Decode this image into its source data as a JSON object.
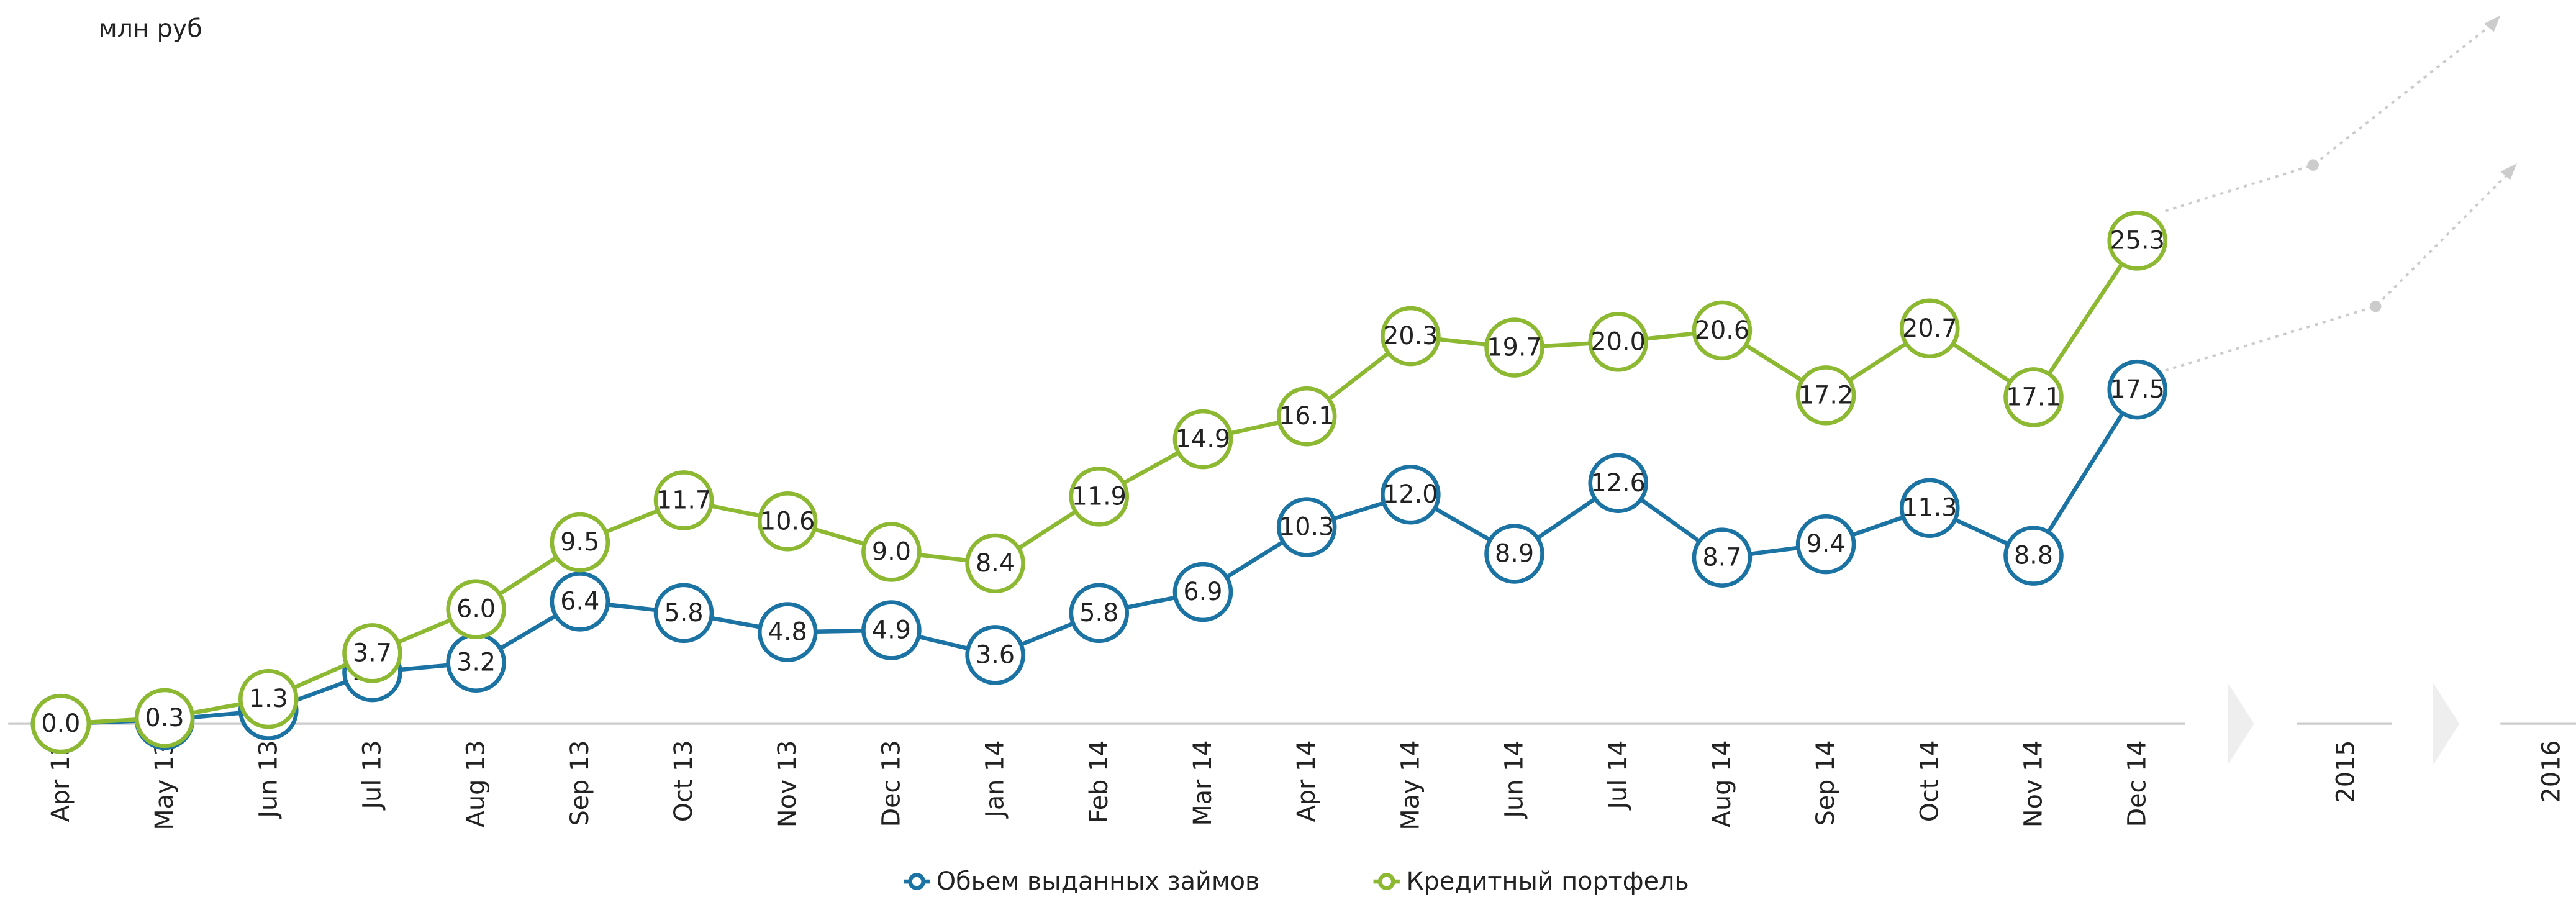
{
  "chart_data": {
    "type": "line",
    "unit_label": "млн руб",
    "categories": [
      "Apr 13",
      "May 13",
      "Jun 13",
      "Jul 13",
      "Aug 13",
      "Sep 13",
      "Oct 13",
      "Nov 13",
      "Dec 13",
      "Jan 14",
      "Feb 14",
      "Mar 14",
      "Apr 14",
      "May 14",
      "Jun 14",
      "Jul 14",
      "Aug 14",
      "Sep 14",
      "Oct 14",
      "Nov 14",
      "Dec 14"
    ],
    "forecast_labels": [
      "2015",
      "2016"
    ],
    "series": [
      {
        "name": "Обьем выданных займов",
        "color": "#1b73a4",
        "values": [
          0.0,
          0.2,
          0.7,
          2.7,
          3.2,
          6.4,
          5.8,
          4.8,
          4.9,
          3.6,
          5.8,
          6.9,
          10.3,
          12.0,
          8.9,
          12.6,
          8.7,
          9.4,
          11.3,
          8.8,
          17.5
        ]
      },
      {
        "name": "Кредитный портфель",
        "color": "#8cb832",
        "values": [
          0.0,
          0.3,
          1.3,
          3.7,
          6.0,
          9.5,
          11.7,
          10.6,
          9.0,
          8.4,
          11.9,
          14.9,
          16.1,
          20.3,
          19.7,
          20.0,
          20.6,
          17.2,
          20.7,
          17.1,
          25.3
        ]
      }
    ]
  }
}
